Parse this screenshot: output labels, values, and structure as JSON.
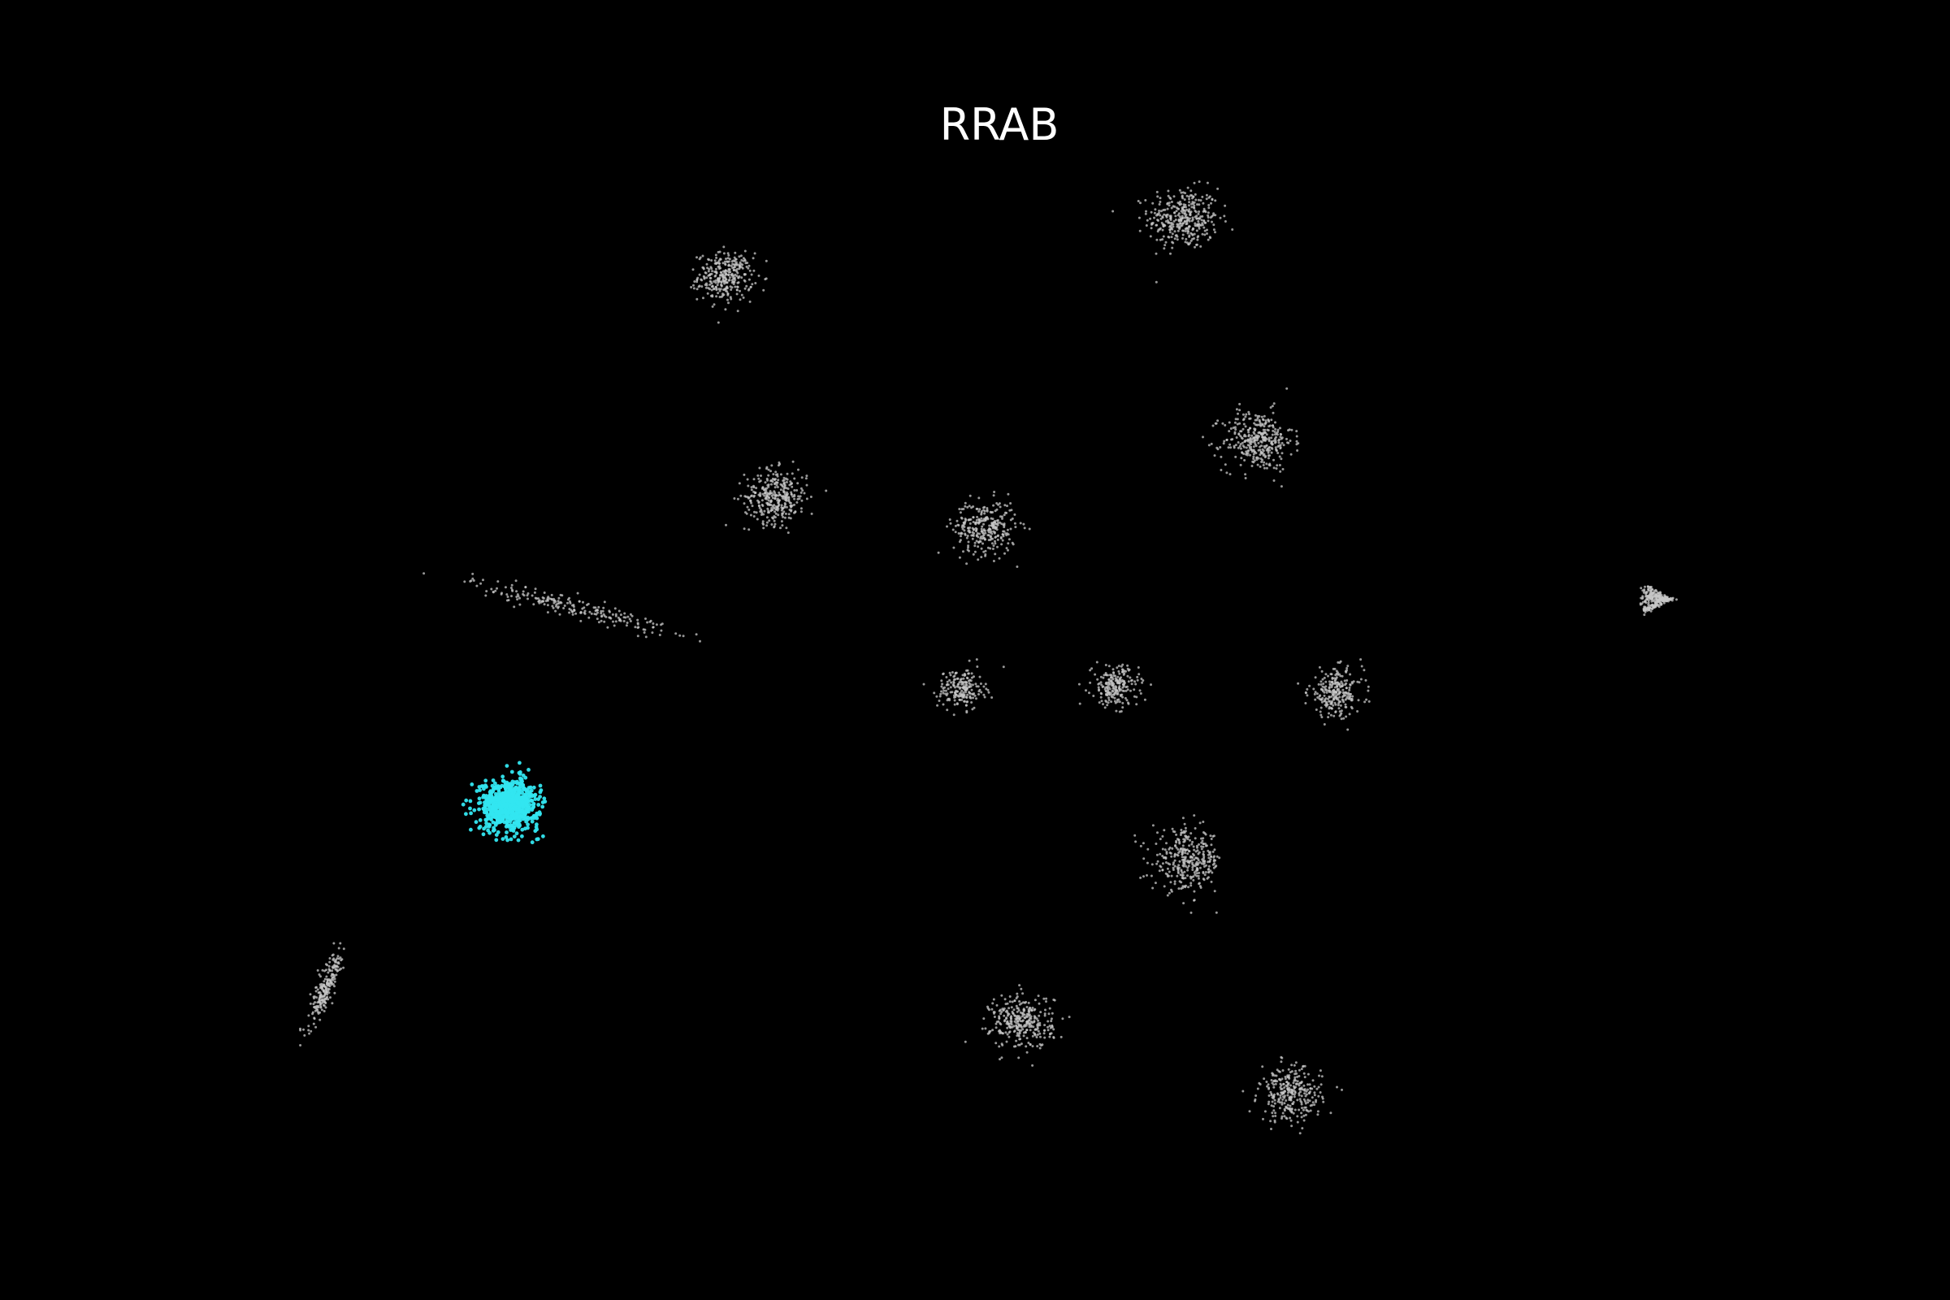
{
  "chart_data": {
    "type": "scatter",
    "title": "RRAB",
    "xlabel": "",
    "ylabel": "",
    "axes_visible": false,
    "grid": false,
    "background_color": "#000000",
    "highlight_color": "#33e6f0",
    "base_color": "#c8c8c8",
    "xlim": [
      0,
      100
    ],
    "ylim": [
      0,
      100
    ],
    "series": [
      {
        "name": "RRAB",
        "color": "#33e6f0",
        "clusters": [
          {
            "x": 26.1,
            "y": 38.1,
            "spread": 0.75,
            "count": 700,
            "shape": "blob"
          }
        ]
      },
      {
        "name": "",
        "color": "#c8c8c8",
        "clusters": [
          {
            "x": 60.7,
            "y": 83.2,
            "spread": 0.9,
            "count": 360,
            "shape": "blob"
          },
          {
            "x": 37.2,
            "y": 78.7,
            "spread": 0.7,
            "count": 320,
            "shape": "blob"
          },
          {
            "x": 64.5,
            "y": 66.1,
            "spread": 0.9,
            "count": 360,
            "shape": "blob"
          },
          {
            "x": 39.8,
            "y": 61.8,
            "spread": 0.8,
            "count": 340,
            "shape": "blob"
          },
          {
            "x": 50.5,
            "y": 59.4,
            "spread": 0.8,
            "count": 300,
            "shape": "blob"
          },
          {
            "x": 29.4,
            "y": 53.3,
            "spread": 1.6,
            "count": 220,
            "shape": "streak"
          },
          {
            "x": 85.6,
            "y": 53.9,
            "spread": 0.6,
            "count": 280,
            "shape": "wedge"
          },
          {
            "x": 49.3,
            "y": 47.0,
            "spread": 0.6,
            "count": 200,
            "shape": "blob"
          },
          {
            "x": 57.2,
            "y": 47.2,
            "spread": 0.6,
            "count": 220,
            "shape": "blob"
          },
          {
            "x": 68.5,
            "y": 46.7,
            "spread": 0.7,
            "count": 260,
            "shape": "blob"
          },
          {
            "x": 60.9,
            "y": 33.8,
            "spread": 0.9,
            "count": 340,
            "shape": "blob"
          },
          {
            "x": 16.7,
            "y": 24.0,
            "spread": 0.6,
            "count": 220,
            "shape": "vstreak"
          },
          {
            "x": 52.4,
            "y": 21.4,
            "spread": 0.8,
            "count": 320,
            "shape": "blob"
          },
          {
            "x": 66.2,
            "y": 15.8,
            "spread": 0.8,
            "count": 300,
            "shape": "blob"
          }
        ]
      }
    ]
  }
}
